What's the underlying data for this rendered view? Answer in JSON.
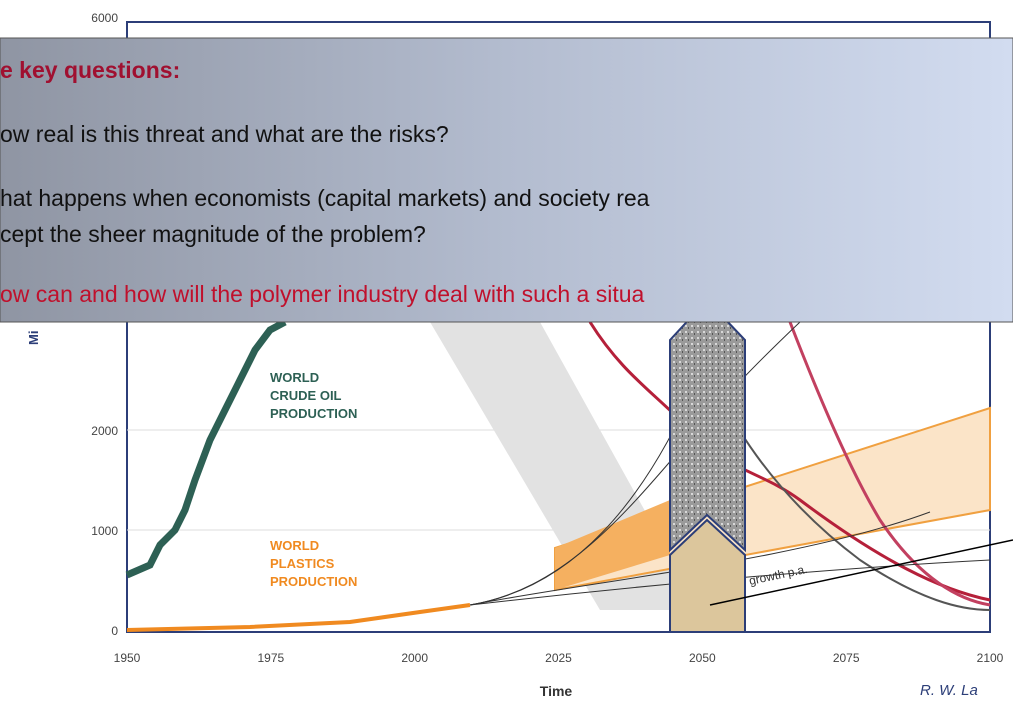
{
  "chart": {
    "yticks": [
      "0",
      "1000",
      "2000",
      "6000"
    ],
    "y_label": "Mi",
    "xticks": [
      "1950",
      "1975",
      "2000",
      "2025",
      "2050",
      "2075",
      "2100"
    ],
    "x_label": "Time",
    "labels": {
      "crude_oil": [
        "WORLD",
        "CRUDE OIL",
        "PRODUCTION"
      ],
      "plastics": [
        "WORLD",
        "PLASTICS",
        "PRODUCTION"
      ],
      "growth": "growth p.a."
    },
    "credit": "R. W. La"
  },
  "overlay": {
    "heading": "e key questions:",
    "items": [
      [
        "ow real is this threat and what are the risks?"
      ],
      [
        "hat happens when economists (capital markets) and society rea",
        "cept the sheer magnitude of the problem?"
      ],
      [
        "ow can and how will the polymer industry deal with such a situa"
      ]
    ]
  }
}
